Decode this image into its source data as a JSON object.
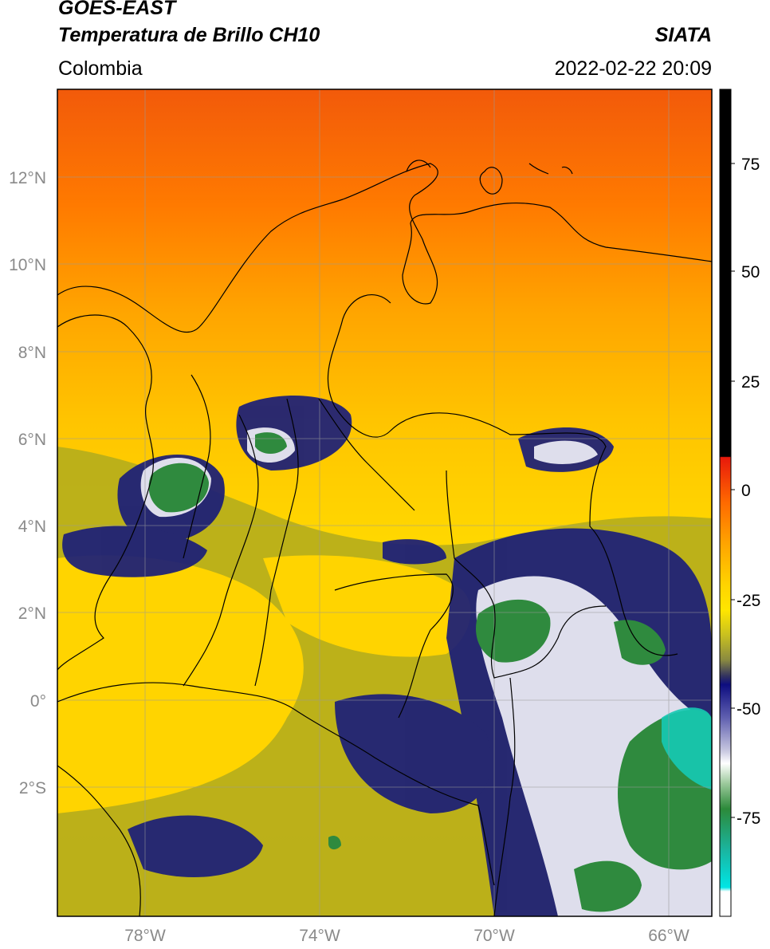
{
  "header": {
    "satellite": "GOES-EAST",
    "product": "Temperatura de Brillo CH10",
    "source": "SIATA",
    "region": "Colombia",
    "datetime": "2022-02-22 20:09"
  },
  "map": {
    "lat_ticks": [
      "12°N",
      "10°N",
      "8°N",
      "6°N",
      "4°N",
      "2°N",
      "0°",
      "2°S"
    ],
    "lon_ticks": [
      "78°W",
      "74°W",
      "70°W",
      "66°W"
    ],
    "extent": {
      "lon_min": -80,
      "lon_max": -65,
      "lat_min": -5,
      "lat_max": 14
    }
  },
  "colorbar": {
    "ticks": [
      "75",
      "50",
      "25",
      "0",
      "-25",
      "-50",
      "-75"
    ],
    "colors": {
      "hot": "#000000",
      "red": "#e8190b",
      "orange": "#ff8c00",
      "yellow": "#ffd400",
      "olive": "#a8a82a",
      "navy": "#16196f",
      "white": "#ffffff",
      "green": "#2c8a3a",
      "teal": "#1ad0c0",
      "cyan": "#00e5e5"
    }
  }
}
